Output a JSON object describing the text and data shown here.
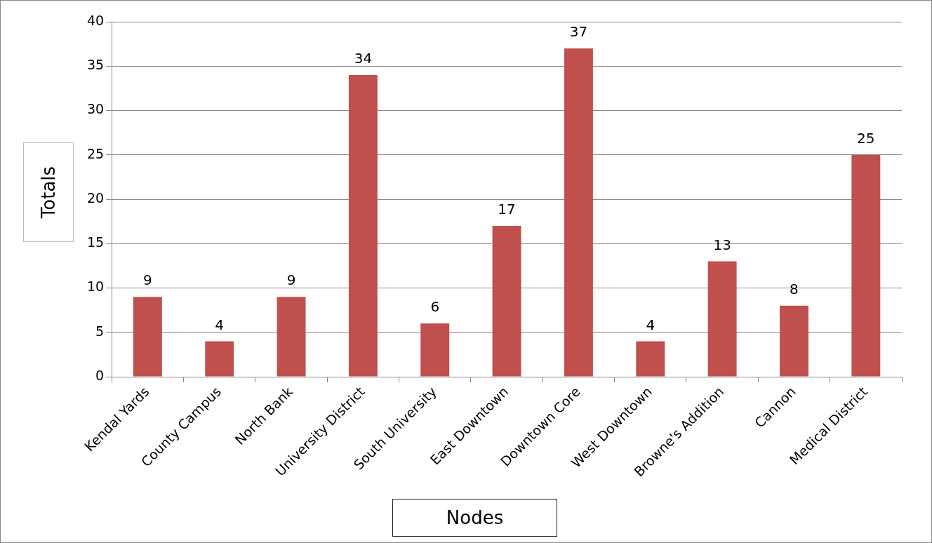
{
  "chart_data": {
    "type": "bar",
    "xlabel": "Nodes",
    "ylabel": "Totals",
    "categories": [
      "Kendal Yards",
      "County Campus",
      "North Bank",
      "University District",
      "South University",
      "East Downtown",
      "Downtown Core",
      "West Downtown",
      "Browne's Addition",
      "Cannon",
      "Medical District"
    ],
    "values": [
      9,
      4,
      9,
      34,
      6,
      17,
      37,
      4,
      13,
      8,
      25
    ],
    "color": "#c0504d",
    "ylim": [
      0,
      40
    ],
    "yticks": [
      0,
      5,
      10,
      15,
      20,
      25,
      30,
      35,
      40
    ],
    "grid": "y",
    "data_labels": true,
    "legend": false
  }
}
